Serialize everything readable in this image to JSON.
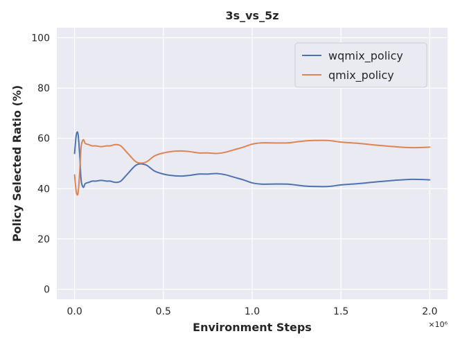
{
  "chart_data": {
    "type": "line",
    "title": "3s_vs_5z",
    "xlabel": "Environment Steps",
    "ylabel": "Policy Selected Ratio (%)",
    "x_offset_label": "×10⁶",
    "xlim": [
      -0.1,
      2.1
    ],
    "ylim": [
      -4,
      104
    ],
    "xticks": [
      0.0,
      0.5,
      1.0,
      1.5,
      2.0
    ],
    "xtick_labels": [
      "0.0",
      "0.5",
      "1.0",
      "1.5",
      "2.0"
    ],
    "yticks": [
      0,
      20,
      40,
      60,
      80,
      100
    ],
    "ytick_labels": [
      "0",
      "20",
      "40",
      "60",
      "80",
      "100"
    ],
    "grid": true,
    "background": "#eaeaf2",
    "legend_position": "top-right",
    "series": [
      {
        "name": "wqmix_policy",
        "color": "#4c72b0",
        "x": [
          0.0,
          0.01,
          0.02,
          0.03,
          0.035,
          0.04,
          0.05,
          0.06,
          0.08,
          0.1,
          0.12,
          0.15,
          0.18,
          0.2,
          0.23,
          0.26,
          0.3,
          0.35,
          0.4,
          0.45,
          0.5,
          0.55,
          0.6,
          0.65,
          0.7,
          0.75,
          0.8,
          0.85,
          0.9,
          0.95,
          1.0,
          1.05,
          1.1,
          1.2,
          1.3,
          1.4,
          1.45,
          1.5,
          1.6,
          1.7,
          1.8,
          1.9,
          2.0
        ],
        "y": [
          54.0,
          61.5,
          61.5,
          52.0,
          45.0,
          42.0,
          40.5,
          42.0,
          42.5,
          43.0,
          43.0,
          43.3,
          43.0,
          43.0,
          42.5,
          43.0,
          46.0,
          49.5,
          49.5,
          47.0,
          45.8,
          45.2,
          45.0,
          45.3,
          45.8,
          45.8,
          46.0,
          45.5,
          44.5,
          43.5,
          42.3,
          41.8,
          41.8,
          41.8,
          41.0,
          40.8,
          41.0,
          41.5,
          42.0,
          42.7,
          43.3,
          43.7,
          43.5
        ]
      },
      {
        "name": "qmix_policy",
        "color": "#dd8452",
        "x": [
          0.0,
          0.01,
          0.02,
          0.03,
          0.035,
          0.04,
          0.05,
          0.06,
          0.08,
          0.1,
          0.12,
          0.15,
          0.18,
          0.2,
          0.23,
          0.26,
          0.3,
          0.35,
          0.4,
          0.45,
          0.5,
          0.55,
          0.6,
          0.65,
          0.7,
          0.75,
          0.8,
          0.85,
          0.9,
          0.95,
          1.0,
          1.05,
          1.1,
          1.2,
          1.3,
          1.4,
          1.45,
          1.5,
          1.6,
          1.7,
          1.8,
          1.9,
          2.0
        ],
        "y": [
          45.5,
          38.5,
          38.5,
          48.0,
          55.0,
          58.0,
          59.5,
          58.0,
          57.5,
          57.0,
          57.0,
          56.7,
          57.0,
          57.0,
          57.5,
          57.0,
          54.0,
          50.5,
          50.5,
          53.0,
          54.2,
          54.8,
          55.0,
          54.7,
          54.2,
          54.2,
          54.0,
          54.5,
          55.5,
          56.5,
          57.7,
          58.2,
          58.2,
          58.2,
          59.0,
          59.2,
          59.0,
          58.5,
          58.0,
          57.3,
          56.7,
          56.3,
          56.5
        ]
      }
    ]
  }
}
